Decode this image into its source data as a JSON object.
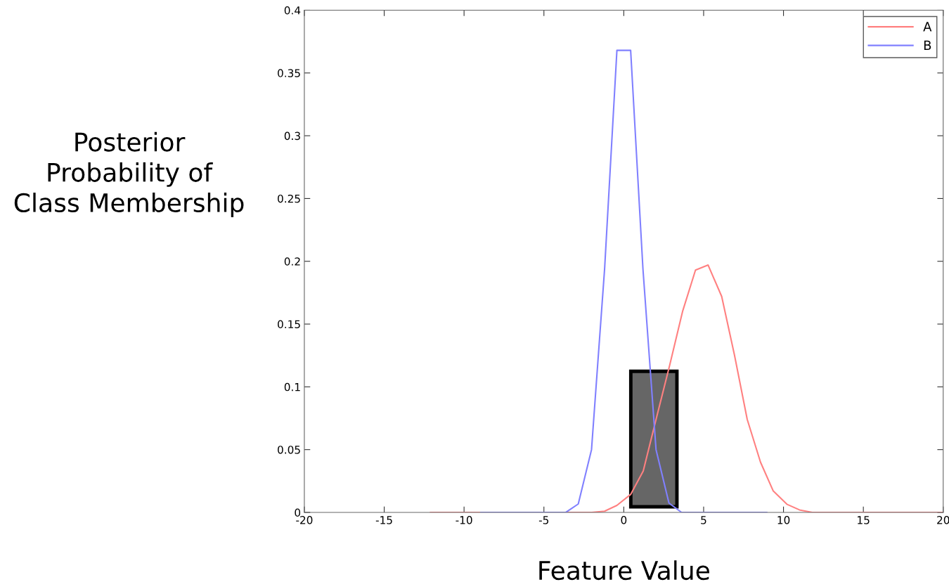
{
  "chart_data": {
    "type": "line",
    "xlabel": "Feature Value",
    "ylabel": "Posterior\nProbability of\nClass Membership",
    "xlim": [
      -20,
      20
    ],
    "ylim": [
      0,
      0.4
    ],
    "xticks": [
      -20,
      -15,
      -10,
      -5,
      0,
      5,
      10,
      15,
      20
    ],
    "yticks": [
      0,
      0.05,
      0.1,
      0.15,
      0.2,
      0.25,
      0.3,
      0.35,
      0.4
    ],
    "grid": false,
    "legend": "top right",
    "marker": "none",
    "line_style": "solid",
    "series": [
      {
        "name": "A",
        "color": "#ff8080",
        "x": [
          -12.1,
          -2.0,
          -1.2,
          -0.43,
          0.43,
          1.22,
          2.02,
          2.87,
          3.68,
          4.49,
          5.28,
          6.13,
          6.92,
          7.73,
          8.56,
          9.36,
          10.21,
          11.0,
          11.8,
          20
        ],
        "values": [
          0,
          0,
          0.001,
          0.0056,
          0.0143,
          0.033,
          0.074,
          0.117,
          0.16,
          0.193,
          0.197,
          0.172,
          0.126,
          0.074,
          0.04,
          0.017,
          0.0065,
          0.002,
          0,
          0
        ]
      },
      {
        "name": "B",
        "color": "#8080ff",
        "x": [
          -8.95,
          -3.63,
          -2.85,
          -2.02,
          -1.2,
          -0.43,
          0.43,
          1.2,
          2.02,
          2.83,
          3.62,
          8.95
        ],
        "values": [
          0,
          0,
          0.0067,
          0.05,
          0.194,
          0.368,
          0.368,
          0.194,
          0.05,
          0.0074,
          0,
          0
        ]
      }
    ]
  }
}
